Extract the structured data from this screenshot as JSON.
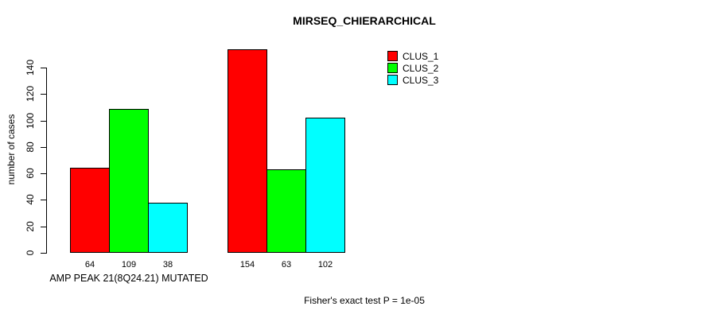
{
  "title": "MIRSEQ_CHIERARCHICAL",
  "footnote": "Fisher's exact test P = 1e-05",
  "y_axis": {
    "label": "number of cases"
  },
  "x_axis": {
    "label": "AMP PEAK 21(8Q24.21) MUTATED"
  },
  "legend": {
    "items": [
      {
        "label": "CLUS_1",
        "color": "#FF0000"
      },
      {
        "label": "CLUS_2",
        "color": "#00FF00"
      },
      {
        "label": "CLUS_3",
        "color": "#00FFFF"
      }
    ]
  },
  "chart_data": {
    "type": "bar",
    "title": "MIRSEQ_CHIERARCHICAL",
    "ylabel": "number of cases",
    "xlabel": "AMP PEAK 21(8Q24.21) MUTATED",
    "ylim": [
      0,
      140
    ],
    "yticks": [
      0,
      20,
      40,
      60,
      80,
      100,
      120,
      140
    ],
    "categories": [
      "AMP PEAK 21(8Q24.21) MUTATED",
      ""
    ],
    "series": [
      {
        "name": "CLUS_1",
        "color": "#FF0000",
        "values": [
          64,
          154
        ]
      },
      {
        "name": "CLUS_2",
        "color": "#00FF00",
        "values": [
          109,
          63
        ]
      },
      {
        "name": "CLUS_3",
        "color": "#00FFFF",
        "values": [
          38,
          102
        ]
      }
    ],
    "bar_value_labels": [
      [
        64,
        109,
        38
      ],
      [
        154,
        63,
        102
      ]
    ],
    "legend_position": "top-right",
    "grid": false,
    "annotation": "Fisher's exact test P = 1e-05"
  }
}
